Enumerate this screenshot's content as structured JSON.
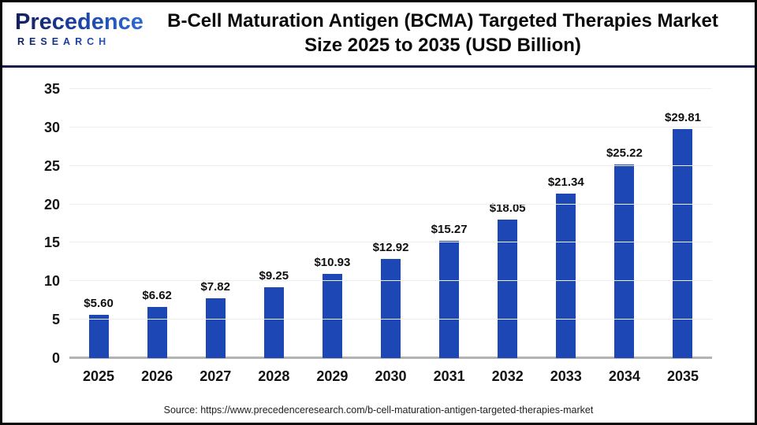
{
  "logo": {
    "name": "Precedence",
    "tagline": "RESEARCH"
  },
  "header": {
    "title_line1": "B-Cell Maturation Antigen (BCMA) Targeted Therapies Market",
    "title_line2": "Size 2025 to 2035 (USD Billion)"
  },
  "chart_data": {
    "type": "bar",
    "title": "B-Cell Maturation Antigen (BCMA) Targeted Therapies Market Size 2025 to 2035 (USD Billion)",
    "categories": [
      "2025",
      "2026",
      "2027",
      "2028",
      "2029",
      "2030",
      "2031",
      "2032",
      "2033",
      "2034",
      "2035"
    ],
    "values": [
      5.6,
      6.62,
      7.82,
      9.25,
      10.93,
      12.92,
      15.27,
      18.05,
      21.34,
      25.22,
      29.81
    ],
    "value_labels": [
      "$5.60",
      "$6.62",
      "$7.82",
      "$9.25",
      "$10.93",
      "$12.92",
      "$15.27",
      "$18.05",
      "$21.34",
      "$25.22",
      "$29.81"
    ],
    "xlabel": "",
    "ylabel": "",
    "ylim": [
      0,
      35
    ],
    "yticks": [
      0,
      5,
      10,
      15,
      20,
      25,
      30,
      35
    ],
    "grid": true,
    "legend": "none",
    "unit": "USD Billion"
  },
  "colors": {
    "bar": "#1C47B5",
    "separator": "#141B4D",
    "gridline": "#EDEDED",
    "baseline": "#B3B3B3",
    "logo_navy": "#131E5C",
    "logo_blue": "#2E6FD8"
  },
  "footer": {
    "source": "Source: https://www.precedenceresearch.com/b-cell-maturation-antigen-targeted-therapies-market"
  }
}
